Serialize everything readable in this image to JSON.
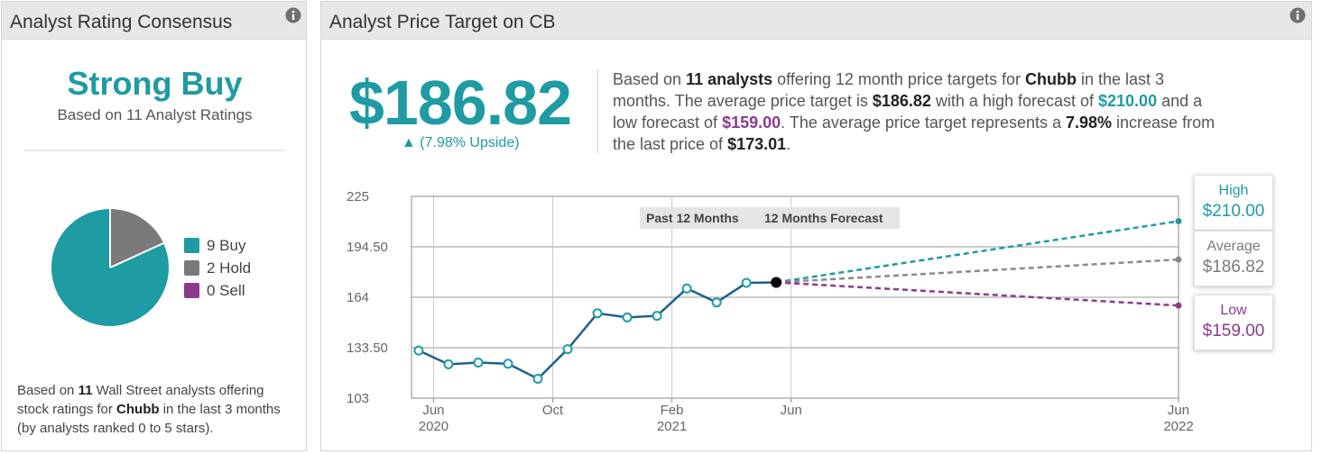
{
  "left_panel": {
    "title": "Analyst Rating Consensus",
    "consensus": "Strong Buy",
    "consensus_sub": "Based on 11 Analyst Ratings",
    "legend": [
      {
        "label": "9 Buy",
        "color": "#1e9ba3"
      },
      {
        "label": "2 Hold",
        "color": "#7a7a7a"
      },
      {
        "label": "0 Sell",
        "color": "#8b3a8f"
      }
    ],
    "footer": {
      "prefix": "Based on ",
      "count": "11",
      "middle": " Wall Street analysts offering stock ratings for ",
      "company": "Chubb",
      "suffix": " in the last 3 months (by analysts ranked 0 to 5 stars)."
    },
    "info_icon": "info-icon"
  },
  "right_panel": {
    "title": "Analyst Price Target on CB",
    "info_icon": "info-icon",
    "average_price": "$186.82",
    "upside": "▲ (7.98% Upside)",
    "summary": {
      "s1": "Based on ",
      "analysts": "11 analysts",
      "s2": " offering 12 month price targets for ",
      "company": "Chubb",
      "s3": " in the last 3 months. The average price target is ",
      "avg": "$186.82",
      "s4": " with a high forecast of ",
      "high": "$210.00",
      "s5": " and a low forecast of ",
      "low": "$159.00",
      "s6": ". The average price target represents a ",
      "pct": "7.98%",
      "s7": " increase from the last price of ",
      "last": "$173.01",
      "s8": "."
    },
    "callouts": {
      "high": {
        "label": "High",
        "value": "$210.00"
      },
      "average": {
        "label": "Average",
        "value": "$186.82"
      },
      "low": {
        "label": "Low",
        "value": "$159.00"
      }
    }
  },
  "colors": {
    "teal": "#1e9ba3",
    "gray": "#7a7a7a",
    "purple": "#8b3a8f",
    "line": "#1f5f8b"
  },
  "chart_data": [
    {
      "type": "pie",
      "title": "Analyst Rating Consensus",
      "categories": [
        "Buy",
        "Hold",
        "Sell"
      ],
      "values": [
        9,
        2,
        0
      ],
      "colors": [
        "#1e9ba3",
        "#7a7a7a",
        "#8b3a8f"
      ]
    },
    {
      "type": "line",
      "title": "Analyst Price Target on CB",
      "yticks": [
        103,
        133.5,
        164,
        194.5,
        225
      ],
      "ytick_labels": [
        "103",
        "133.50",
        "164",
        "194.50",
        "225"
      ],
      "ylim": [
        103,
        225
      ],
      "x_range_months": [
        0,
        25
      ],
      "xticks": [
        {
          "m": 0,
          "line1": "Jun",
          "line2": "2020"
        },
        {
          "m": 4,
          "line1": "Oct",
          "line2": ""
        },
        {
          "m": 8,
          "line1": "Feb",
          "line2": "2021"
        },
        {
          "m": 12,
          "line1": "Jun",
          "line2": ""
        },
        {
          "m": 25,
          "line1": "Jun",
          "line2": "2022"
        }
      ],
      "period_labels": [
        "Past 12 Months",
        "12 Months Forecast"
      ],
      "series": [
        {
          "name": "Price",
          "points": [
            [
              -0.5,
              131.8
            ],
            [
              0.5,
              123.5
            ],
            [
              1.5,
              124.5
            ],
            [
              2.5,
              123.8
            ],
            [
              3.5,
              114.7
            ],
            [
              4.5,
              132.6
            ],
            [
              5.5,
              154.3
            ],
            [
              6.5,
              151.8
            ],
            [
              7.5,
              152.8
            ],
            [
              8.5,
              169.3
            ],
            [
              9.5,
              160.9
            ],
            [
              10.5,
              172.7
            ],
            [
              11.5,
              173.01
            ]
          ]
        },
        {
          "name": "High",
          "from": [
            11.5,
            173.01
          ],
          "to": [
            25,
            210.0
          ]
        },
        {
          "name": "Average",
          "from": [
            11.5,
            173.01
          ],
          "to": [
            25,
            186.82
          ]
        },
        {
          "name": "Low",
          "from": [
            11.5,
            173.01
          ],
          "to": [
            25,
            159.0
          ]
        }
      ]
    }
  ]
}
